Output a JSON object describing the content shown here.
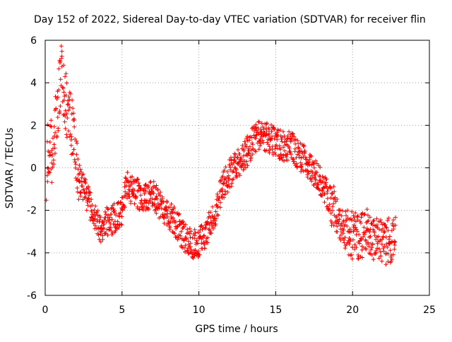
{
  "chart_data": {
    "type": "scatter",
    "title": "Day 152 of 2022, Sidereal Day-to-day VTEC variation (SDTVAR) for receiver flin",
    "xlabel": "GPS time / hours",
    "ylabel": "SDTVAR / TECUs",
    "xlim": [
      0,
      25
    ],
    "ylim": [
      -6,
      6
    ],
    "xticks": [
      0,
      5,
      10,
      15,
      20,
      25
    ],
    "yticks": [
      -6,
      -4,
      -2,
      0,
      2,
      4,
      6
    ],
    "grid": true,
    "marker": "plus",
    "series": [
      {
        "name": "SDTVAR",
        "color": "#ff0000",
        "trend": [
          [
            0.1,
            0.5
          ],
          [
            0.3,
            1.0
          ],
          [
            0.5,
            0.5
          ],
          [
            0.7,
            2.5
          ],
          [
            0.9,
            3.5
          ],
          [
            1.0,
            4.5
          ],
          [
            1.2,
            3.5
          ],
          [
            1.4,
            2.8
          ],
          [
            1.6,
            2.5
          ],
          [
            1.8,
            1.5
          ],
          [
            2.0,
            0.5
          ],
          [
            2.2,
            -0.5
          ],
          [
            2.5,
            -1.0
          ],
          [
            2.8,
            -1.5
          ],
          [
            3.0,
            -2.0
          ],
          [
            3.3,
            -2.5
          ],
          [
            3.6,
            -2.8
          ],
          [
            4.0,
            -2.5
          ],
          [
            4.3,
            -2.5
          ],
          [
            4.6,
            -2.3
          ],
          [
            5.0,
            -2.0
          ],
          [
            5.3,
            -0.8
          ],
          [
            5.6,
            -1.0
          ],
          [
            6.0,
            -1.2
          ],
          [
            6.5,
            -1.5
          ],
          [
            7.0,
            -1.2
          ],
          [
            7.5,
            -1.8
          ],
          [
            8.0,
            -2.2
          ],
          [
            8.5,
            -2.6
          ],
          [
            9.0,
            -3.2
          ],
          [
            9.5,
            -3.6
          ],
          [
            10.0,
            -3.5
          ],
          [
            10.5,
            -3.0
          ],
          [
            11.0,
            -2.2
          ],
          [
            11.5,
            -1.0
          ],
          [
            12.0,
            -0.3
          ],
          [
            12.5,
            0.2
          ],
          [
            13.0,
            0.6
          ],
          [
            13.5,
            1.2
          ],
          [
            14.0,
            1.6
          ],
          [
            14.5,
            1.4
          ],
          [
            15.0,
            1.2
          ],
          [
            15.5,
            1.0
          ],
          [
            16.0,
            1.0
          ],
          [
            16.5,
            0.6
          ],
          [
            17.0,
            0.3
          ],
          [
            17.5,
            -0.2
          ],
          [
            18.0,
            -0.8
          ],
          [
            18.5,
            -1.5
          ],
          [
            19.0,
            -2.2
          ],
          [
            19.5,
            -2.8
          ],
          [
            20.0,
            -3.2
          ],
          [
            20.5,
            -3.2
          ],
          [
            21.0,
            -3.0
          ],
          [
            21.5,
            -3.3
          ],
          [
            22.0,
            -3.5
          ],
          [
            22.5,
            -3.4
          ],
          [
            22.8,
            -3.0
          ]
        ]
      }
    ]
  }
}
